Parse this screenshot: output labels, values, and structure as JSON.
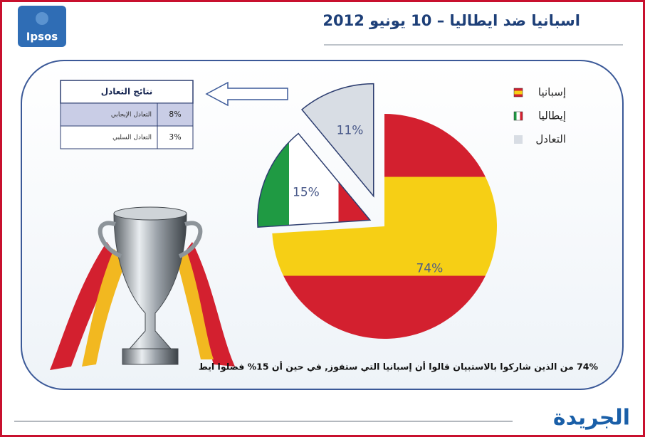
{
  "logo": "Ipsos",
  "chart_data": {
    "type": "pie",
    "title": "اسبانيا ضد ايطاليا – 10 يونيو 2012",
    "categories": [
      "إسبانيا",
      "إيطاليا",
      "التعادل"
    ],
    "values": [
      74,
      15,
      11
    ],
    "value_labels": [
      "74%",
      "15%",
      "11%"
    ],
    "colors": [
      [
        "#d3202f",
        "#f6cf15",
        "#d3202f"
      ],
      [
        "#1f9a43",
        "#ffffff",
        "#d3202f"
      ],
      [
        "#d8dde4"
      ]
    ],
    "legend": "top-right"
  },
  "draw_table": {
    "title": "نتائج التعادل",
    "rows": [
      [
        "التعادل الإيجابي",
        "8%"
      ],
      [
        "التعادل السلبي",
        "3%"
      ]
    ]
  },
  "caption": "74% من الذين شاركوا بالاستبيان قالوا أن إسبانيا التي ستفوز, في حين أن 15% فضلوا ايط",
  "footer_brand": "الجريدة"
}
